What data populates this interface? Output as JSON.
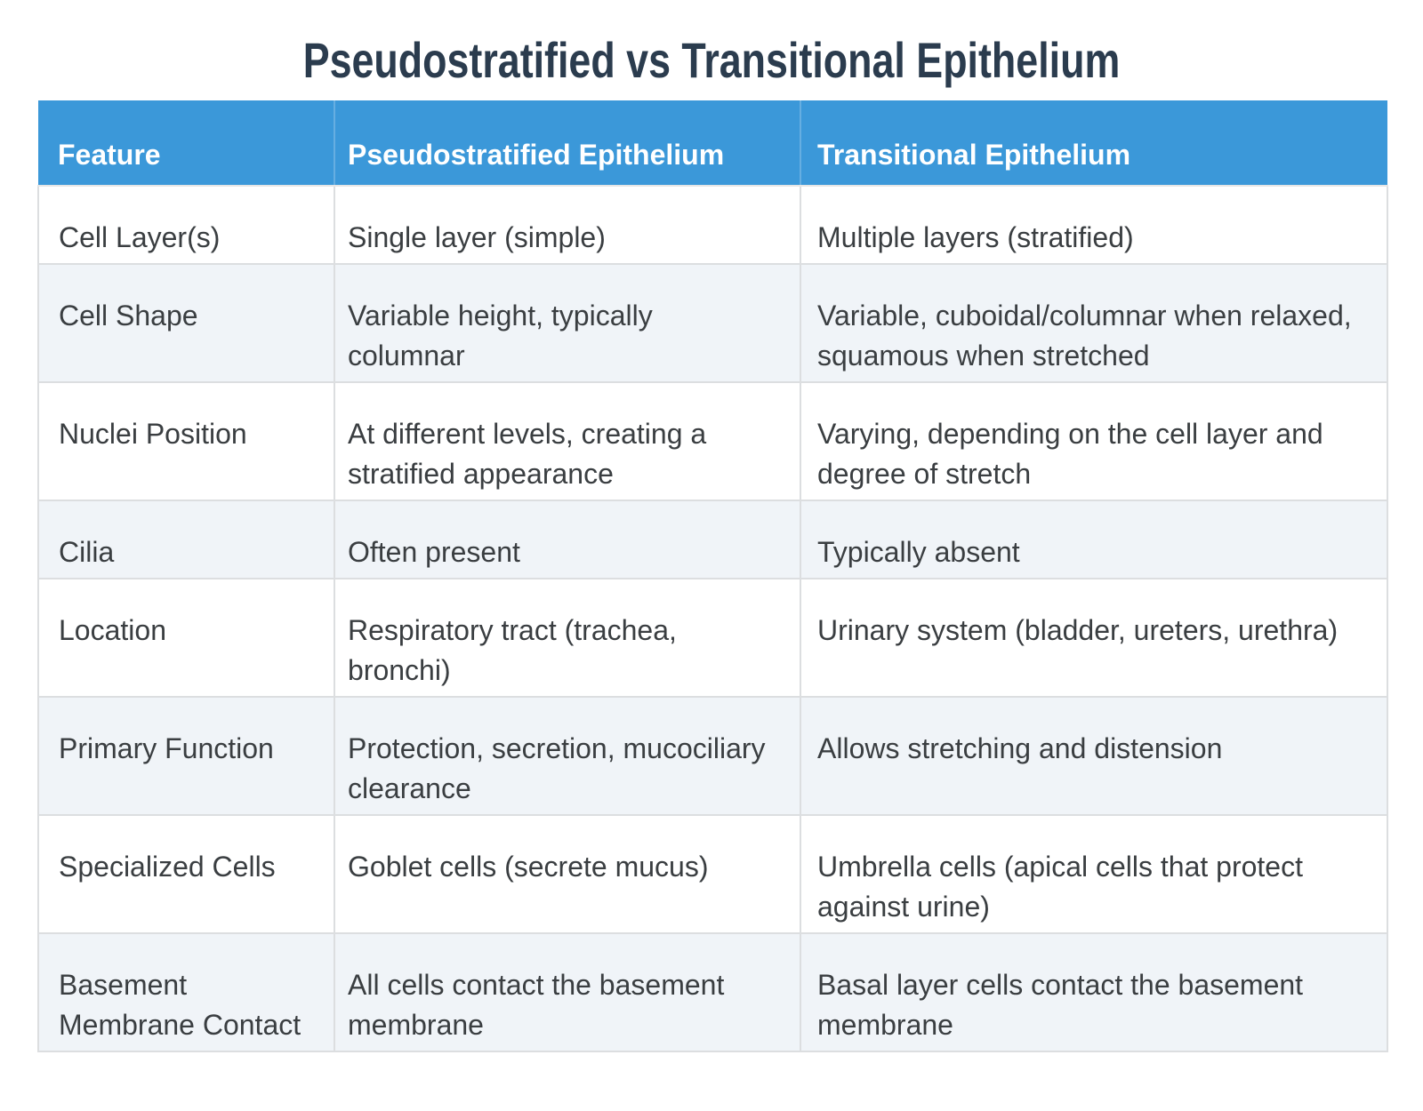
{
  "page_title": "Pseudostratified vs Transitional Epithelium",
  "table": {
    "headers": [
      "Feature",
      "Pseudostratified Epithelium",
      "Transitional Epithelium"
    ],
    "rows": [
      {
        "feature": "Cell Layer(s)",
        "pseudostratified": "Single layer (simple)",
        "transitional": "Multiple layers (stratified)"
      },
      {
        "feature": "Cell Shape",
        "pseudostratified": "Variable height, typically columnar",
        "transitional": "Variable, cuboidal/columnar when relaxed, squamous when stretched"
      },
      {
        "feature": "Nuclei Position",
        "pseudostratified": "At different levels, creating a stratified appearance",
        "transitional": "Varying, depending on the cell layer and degree of stretch"
      },
      {
        "feature": "Cilia",
        "pseudostratified": "Often present",
        "transitional": "Typically absent"
      },
      {
        "feature": "Location",
        "pseudostratified": "Respiratory tract (trachea, bronchi)",
        "transitional": "Urinary system (bladder, ureters, urethra)"
      },
      {
        "feature": "Primary Function",
        "pseudostratified": "Protection, secretion, mucociliary clearance",
        "transitional": "Allows stretching and distension"
      },
      {
        "feature": "Specialized Cells",
        "pseudostratified": "Goblet cells (secrete mucus)",
        "transitional": "Umbrella cells (apical cells that protect against urine)"
      },
      {
        "feature": "Basement Membrane Contact",
        "pseudostratified": "All cells contact the basement membrane",
        "transitional": "Basal layer cells contact the basement membrane"
      }
    ]
  },
  "colors": {
    "header_bg": "#3b98d9",
    "header_text": "#ffffff",
    "title": "#2b3c4e",
    "body_text": "#3a3e41",
    "row_bg": "#ffffff",
    "alt_row_bg": "#f0f4f8",
    "border": "#dcdee0"
  }
}
